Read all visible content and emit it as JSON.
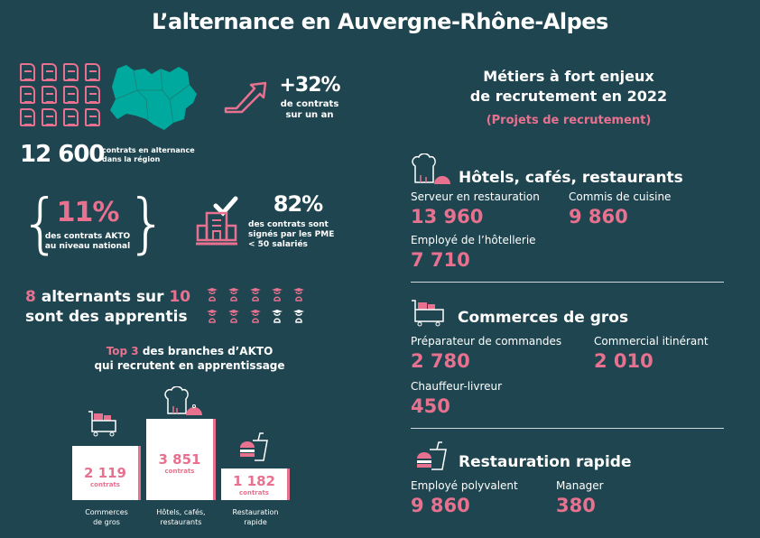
{
  "title": "L’alternance en Auvergne-Rhône-Alpes",
  "stats": {
    "contracts_total": "12 600",
    "contracts_total_label_1": "contrats en alternance",
    "contracts_total_label_2": "dans la région",
    "growth": "+32%",
    "growth_label_1": "de contrats",
    "growth_label_2": "sur un an",
    "akto_share": "11%",
    "akto_label_1": "des contrats AKTO",
    "akto_label_2": "au niveau national",
    "pme_share": "82%",
    "pme_label_1": "des contrats sont",
    "pme_label_2": "signés par les PME",
    "pme_label_3": "< 50 salariés",
    "apprentis_1a": "8",
    "apprentis_1b": " alternants sur ",
    "apprentis_1c": "10",
    "apprentis_2": "sont des apprentis",
    "apprentis_count": 8,
    "apprentis_total": 10
  },
  "top3": {
    "title_highlight": "Top 3",
    "title_rest": " des branches d’AKTO",
    "title_line2": "qui recrutent en apprentissage",
    "unit": "contrats",
    "branches": [
      {
        "value": "2 119",
        "label_1": "Commerces",
        "label_2": "de gros"
      },
      {
        "value": "3 851",
        "label_1": "Hôtels, cafés,",
        "label_2": "restaurants"
      },
      {
        "value": "1 182",
        "label_1": "Restauration",
        "label_2": "rapide"
      }
    ]
  },
  "chart_data": {
    "type": "bar",
    "title": "Top 3 des branches d’AKTO qui recrutent en apprentissage",
    "categories": [
      "Commerces de gros",
      "Hôtels, cafés, restaurants",
      "Restauration rapide"
    ],
    "values": [
      2119,
      3851,
      1182
    ],
    "ylabel": "contrats"
  },
  "metiers": {
    "title_1": "Métiers à fort enjeux",
    "title_2": "de recrutement en 2022",
    "subtitle": "(Projets de recrutement)",
    "sections": [
      {
        "name": "Hôtels, cafés, restaurants",
        "jobs": [
          {
            "label": "Serveur en restauration",
            "value": "13 960"
          },
          {
            "label": "Commis de cuisine",
            "value": "9 860"
          },
          {
            "label": "Employé de l’hôtellerie",
            "value": "7 710"
          }
        ]
      },
      {
        "name": "Commerces de gros",
        "jobs": [
          {
            "label": "Préparateur de commandes",
            "value": "2 780"
          },
          {
            "label": "Commercial itinérant",
            "value": "2 010"
          },
          {
            "label": "Chauffeur-livreur",
            "value": "450"
          }
        ]
      },
      {
        "name": "Restauration rapide",
        "jobs": [
          {
            "label": "Employé polyvalent",
            "value": "9 860"
          },
          {
            "label": "Manager",
            "value": "380"
          }
        ]
      }
    ]
  },
  "colors": {
    "background": "#1f4650",
    "accent": "#e8718f",
    "map": "#00a99d"
  }
}
